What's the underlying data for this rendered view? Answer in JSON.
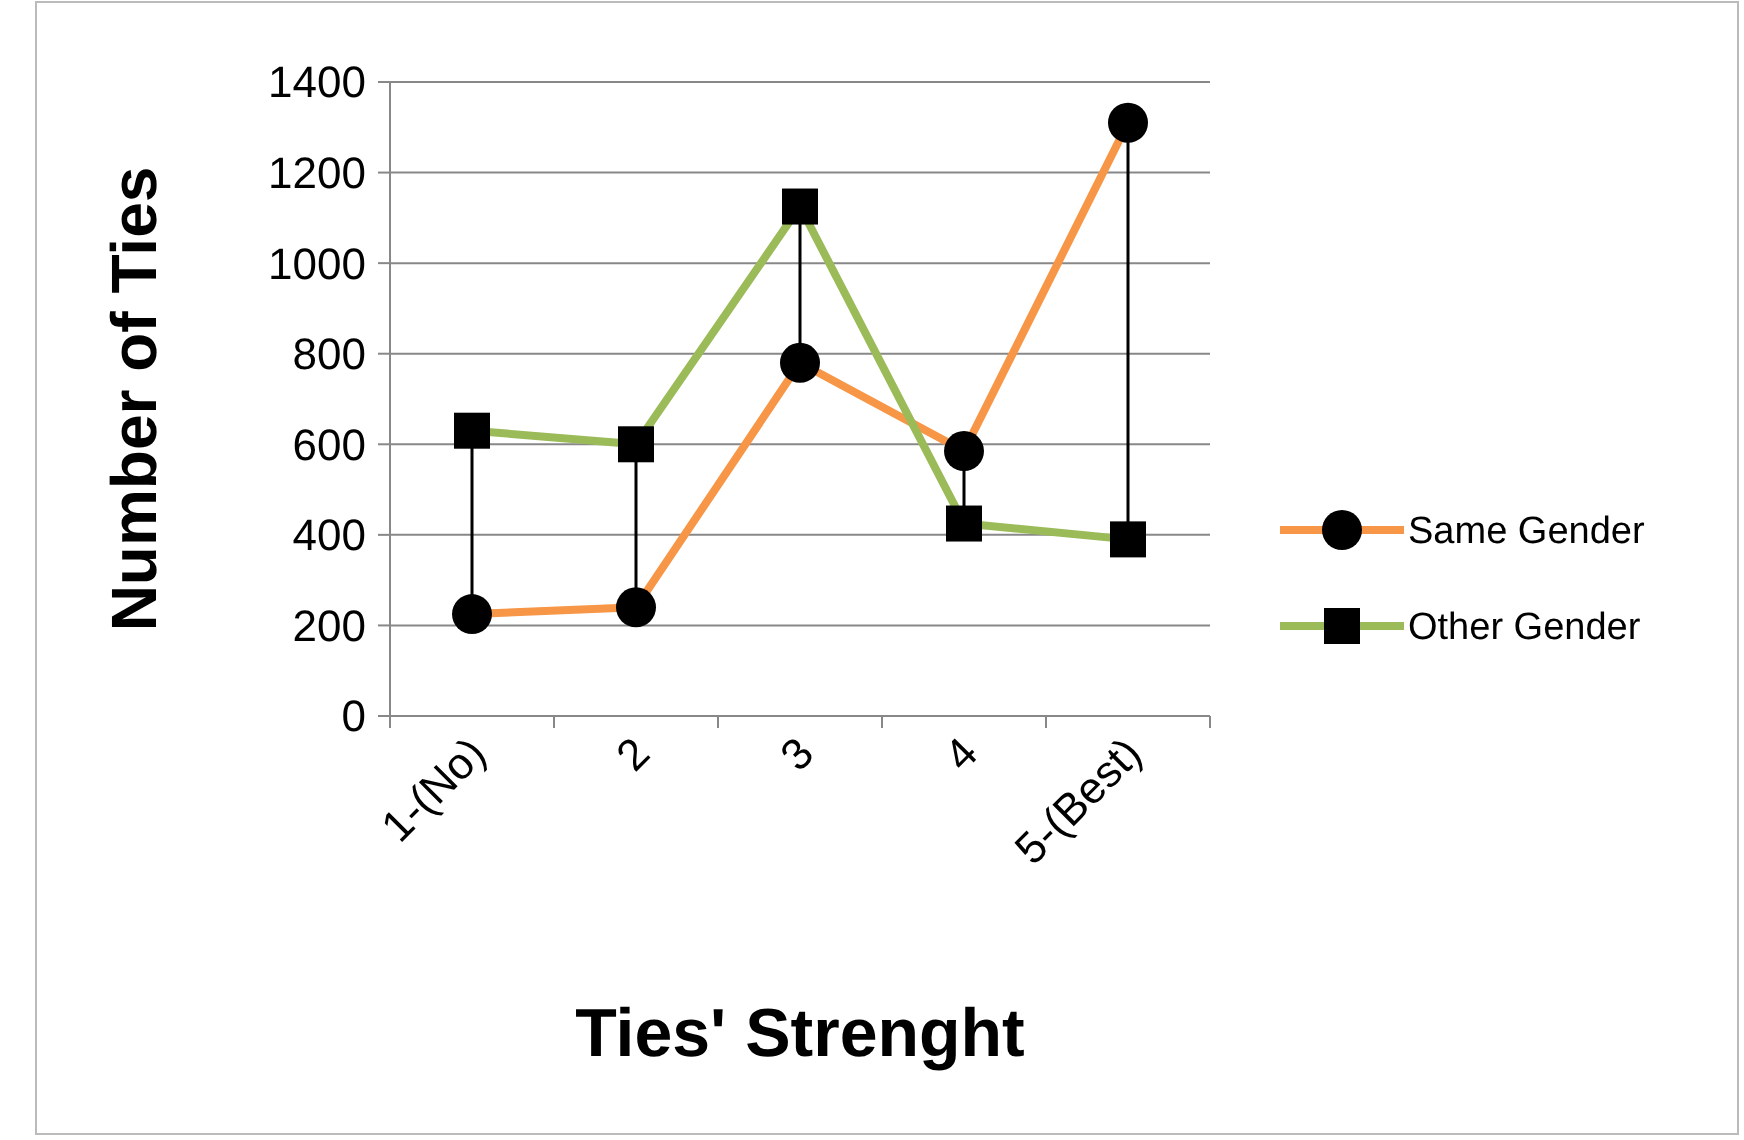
{
  "chart_data": {
    "type": "line",
    "xlabel": "Ties' Strenght",
    "ylabel": "Number of Ties",
    "categories": [
      "1-(No)",
      "2",
      "3",
      "4",
      "5-(Best)"
    ],
    "series": [
      {
        "name": "Same Gender",
        "color": "#f79646",
        "marker": "circle",
        "values": [
          225,
          240,
          780,
          585,
          1310
        ]
      },
      {
        "name": "Other Gender",
        "color": "#9bbb59",
        "marker": "square",
        "values": [
          630,
          600,
          1125,
          425,
          390
        ]
      }
    ],
    "ylim": [
      0,
      1400
    ],
    "yticks": [
      0,
      200,
      400,
      600,
      800,
      1000,
      1200,
      1400
    ],
    "grid": "y",
    "legend": "right"
  }
}
